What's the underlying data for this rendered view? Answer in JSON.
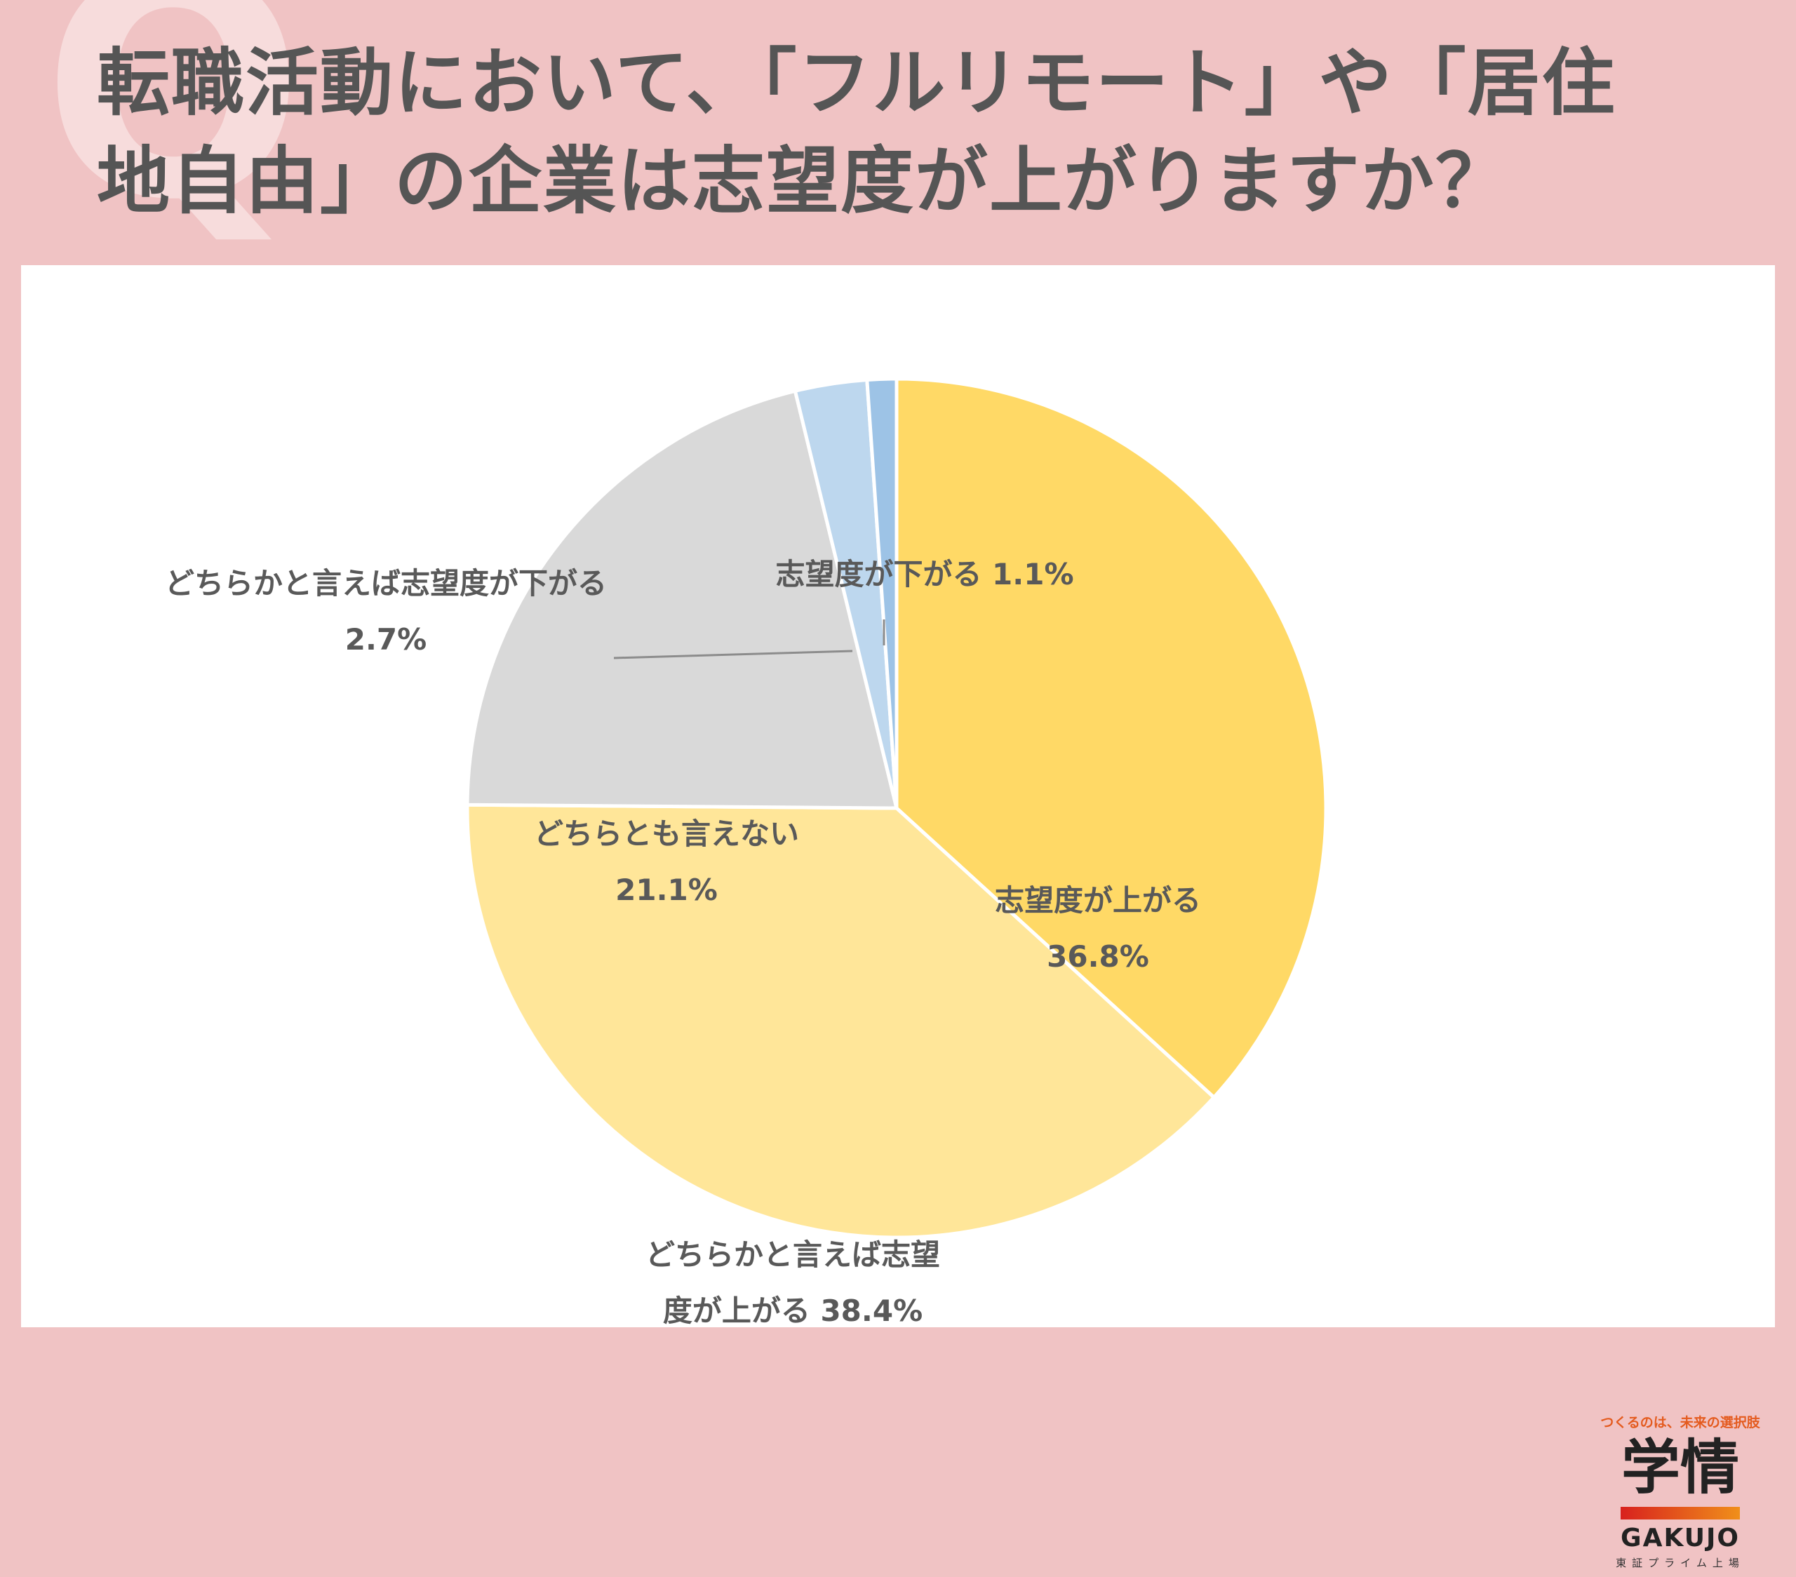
{
  "header": {
    "mark": "Q",
    "title_line1": "転職活動において、「フルリモート」や「居住",
    "title_line2": "地自由」の企業は志望度が上がりますか？"
  },
  "chart_data": {
    "type": "pie",
    "start_angle_deg": 0,
    "direction": "clockwise",
    "slices": [
      {
        "label_lines": [
          "志望度が上がる",
          "36.8%"
        ],
        "value": 36.8,
        "color": "#ffd966"
      },
      {
        "label_lines": [
          "どちらかと言えば志望",
          "度が上がる 38.4%"
        ],
        "value": 38.4,
        "color": "#ffe699"
      },
      {
        "label_lines": [
          "どちらとも言えない",
          "21.1%"
        ],
        "value": 21.1,
        "color": "#d9d9d9"
      },
      {
        "label_lines": [
          "どちらかと言えば志望度が下がる",
          "2.7%"
        ],
        "value": 2.7,
        "color": "#bdd7ee"
      },
      {
        "label_lines": [
          "志望度が下がる 1.1%"
        ],
        "value": 1.1,
        "color": "#9dc3e6"
      }
    ]
  },
  "logo": {
    "tagline": "つくるのは、未来の選択肢",
    "kanji": "学情",
    "name": "GAKUJO",
    "sub": "東証プライム上場"
  }
}
